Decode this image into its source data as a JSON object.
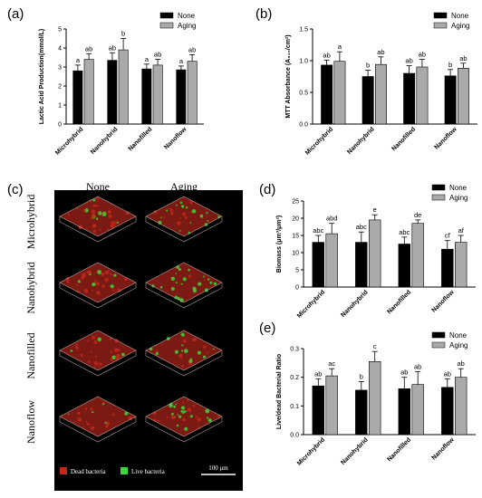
{
  "colors": {
    "none": "#000000",
    "aging": "#aaaaaa",
    "microscopy_bg": "#000000",
    "dead": "#c0281c",
    "live": "#38d838",
    "box": "#b8a0a0"
  },
  "legend": {
    "none": "None",
    "aging": "Aging"
  },
  "categories": [
    "Microhybrid",
    "Nanohybrid",
    "Nanofilled",
    "Nanoflow"
  ],
  "microscopy": {
    "panel_label": "(c)",
    "col_headers": [
      "None",
      "Aging"
    ],
    "row_labels": [
      "Microhybrid",
      "Nanohybrid",
      "Nanofilled",
      "Nanoflow"
    ],
    "legend_dead": "Dead bacteria",
    "legend_live": "Live bacteria",
    "scale_label": "100 μm"
  },
  "chart_data": [
    {
      "panel": "(a)",
      "type": "bar",
      "ylabel": "Lactic Acid Production(mmol/L)",
      "ylim": [
        0,
        5
      ],
      "yticks": [
        0,
        1,
        2,
        3,
        4,
        5
      ],
      "tick_decimals": 0,
      "categories": [
        "Microhybrid",
        "Nanohybrid",
        "Nanofilled",
        "Nanoflow"
      ],
      "series": [
        {
          "name": "None",
          "values": [
            2.8,
            3.35,
            2.9,
            2.85
          ],
          "errors": [
            0.3,
            0.4,
            0.25,
            0.2
          ],
          "labels": [
            "a",
            "ab",
            "a",
            "a"
          ]
        },
        {
          "name": "Aging",
          "values": [
            3.4,
            3.9,
            3.1,
            3.3
          ],
          "errors": [
            0.3,
            0.6,
            0.3,
            0.35
          ],
          "labels": [
            "ab",
            "b",
            "ab",
            "ab"
          ]
        }
      ],
      "legend_position": "top-right"
    },
    {
      "panel": "(b)",
      "type": "bar",
      "ylabel": "MTT Absorbance (A₅₄₀/cm²)",
      "ylim": [
        0,
        1.5
      ],
      "yticks": [
        0,
        0.5,
        1.0,
        1.5
      ],
      "tick_decimals": 1,
      "categories": [
        "Microhybrid",
        "Nanohybrid",
        "Nanofilled",
        "Nanoflow"
      ],
      "series": [
        {
          "name": "None",
          "values": [
            0.93,
            0.75,
            0.8,
            0.76
          ],
          "errors": [
            0.08,
            0.1,
            0.12,
            0.1
          ],
          "labels": [
            "ab",
            "b",
            "ab",
            "b"
          ]
        },
        {
          "name": "Aging",
          "values": [
            0.99,
            0.94,
            0.9,
            0.88
          ],
          "errors": [
            0.15,
            0.12,
            0.12,
            0.08
          ],
          "labels": [
            "a",
            "ab",
            "ab",
            "ab"
          ]
        }
      ],
      "legend_position": "top-right"
    },
    {
      "panel": "(d)",
      "type": "bar",
      "ylabel": "Biomass (μm³/μm²)",
      "ylim": [
        0,
        25
      ],
      "yticks": [
        0,
        5,
        10,
        15,
        20,
        25
      ],
      "tick_decimals": 0,
      "categories": [
        "Microhybrid",
        "Nanohybrid",
        "Nanofilled",
        "Nanoflow"
      ],
      "series": [
        {
          "name": "None",
          "values": [
            13.0,
            13.0,
            12.5,
            11.0
          ],
          "errors": [
            2.0,
            3.0,
            2.0,
            2.5
          ],
          "labels": [
            "abc",
            "abc",
            "abc",
            "cf"
          ]
        },
        {
          "name": "Aging",
          "values": [
            15.5,
            19.5,
            18.5,
            13.0
          ],
          "errors": [
            3.0,
            1.5,
            1.0,
            2.0
          ],
          "labels": [
            "abd",
            "e",
            "de",
            "af"
          ]
        }
      ],
      "legend_position": "top-right"
    },
    {
      "panel": "(e)",
      "type": "bar",
      "ylabel": "Live/dead Bacterial Ratio",
      "ylim": [
        0,
        0.3
      ],
      "yticks": [
        0,
        0.1,
        0.2,
        0.3
      ],
      "tick_decimals": 1,
      "categories": [
        "Microhybrid",
        "Nanohybrid",
        "Nanofilled",
        "Nanoflow"
      ],
      "series": [
        {
          "name": "None",
          "values": [
            0.17,
            0.155,
            0.16,
            0.165
          ],
          "errors": [
            0.025,
            0.03,
            0.04,
            0.03
          ],
          "labels": [
            "ab",
            "b",
            "ab",
            "ab"
          ]
        },
        {
          "name": "Aging",
          "values": [
            0.205,
            0.255,
            0.175,
            0.2
          ],
          "errors": [
            0.025,
            0.035,
            0.045,
            0.03
          ],
          "labels": [
            "ac",
            "c",
            "ab",
            "ab"
          ]
        }
      ],
      "legend_position": "top-right"
    }
  ]
}
